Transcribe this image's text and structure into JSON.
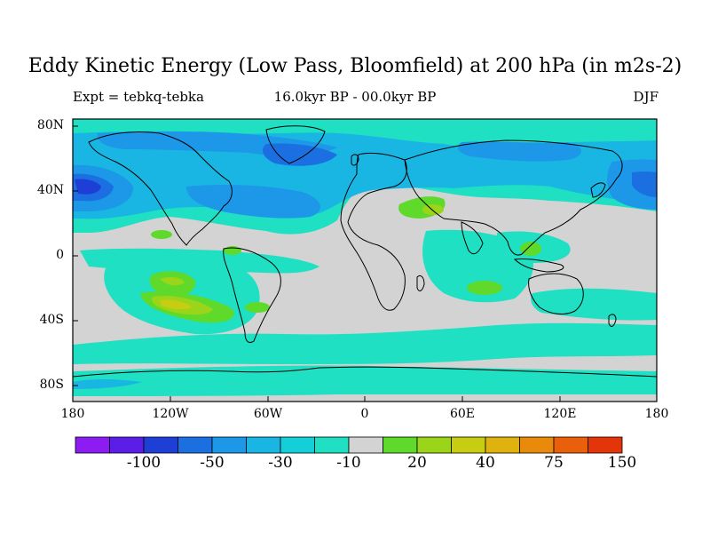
{
  "title": "Eddy Kinetic Energy (Low Pass, Bloomfield) at 200 hPa (in m2s-2)",
  "subtitle_left": "Expt = tebkq-tebka",
  "subtitle_center": "16.0kyr BP - 00.0kyr BP",
  "subtitle_right": "DJF",
  "lat_labels": [
    "80N",
    "40N",
    "0",
    "40S",
    "80S"
  ],
  "lon_labels": [
    "180",
    "120W",
    "60W",
    "0",
    "60E",
    "120E",
    "180"
  ],
  "colorbar": {
    "colors": [
      "#8c1cf2",
      "#5a1ee8",
      "#1e3fd6",
      "#1c6fe0",
      "#1d98e8",
      "#19b6e3",
      "#13cfd7",
      "#1fe0c2",
      "#d3d3d3",
      "#5fd92a",
      "#9ad51a",
      "#c7cd10",
      "#e0b20d",
      "#ea8a0a",
      "#ea5f0a",
      "#e4350a"
    ],
    "labels": [
      "-100",
      "-50",
      "-30",
      "-10",
      "20",
      "40",
      "75",
      "150"
    ]
  },
  "colors": {
    "neutral": "#d3d3d3",
    "cyan": "#1fe0c2",
    "light_blue": "#19b6e3",
    "mid_blue": "#1d98e8",
    "blue": "#1c6fe0",
    "deep_blue": "#1e3fd6",
    "green": "#5fd92a",
    "yellow_green": "#9ad51a",
    "yellow": "#c7cd10"
  }
}
